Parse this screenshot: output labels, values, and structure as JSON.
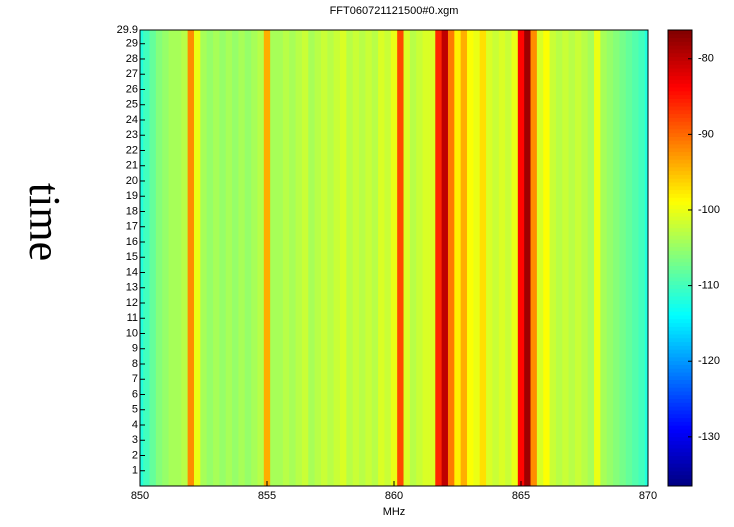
{
  "chart_data": {
    "type": "spectrogram",
    "title": "FFT060721121500#0.xgm",
    "x_label": "MHz",
    "y_label": "time",
    "colormap": "jet",
    "x": [
      850,
      850.25,
      850.5,
      850.75,
      851,
      851.25,
      851.5,
      851.75,
      852,
      852.25,
      852.5,
      852.75,
      853,
      853.25,
      853.5,
      853.75,
      854,
      854.25,
      854.5,
      854.75,
      855,
      855.25,
      855.5,
      855.75,
      856,
      856.25,
      856.5,
      856.75,
      857,
      857.25,
      857.5,
      857.75,
      858,
      858.25,
      858.5,
      858.75,
      859,
      859.25,
      859.5,
      859.75,
      860,
      860.25,
      860.5,
      860.75,
      861,
      861.25,
      861.5,
      861.75,
      862,
      862.25,
      862.5,
      862.75,
      863,
      863.25,
      863.5,
      863.75,
      864,
      864.25,
      864.5,
      864.75,
      865,
      865.25,
      865.5,
      865.75,
      866,
      866.25,
      866.5,
      866.75,
      867,
      867.25,
      867.5,
      867.75,
      868,
      868.25,
      868.5,
      868.75,
      869,
      869.25,
      869.5,
      869.75,
      870
    ],
    "values": [
      -112,
      -110,
      -108,
      -106,
      -105,
      -104,
      -104,
      -103,
      -92,
      -100,
      -104,
      -105,
      -104,
      -105,
      -104,
      -105,
      -104,
      -105,
      -104,
      -103,
      -94,
      -104,
      -104,
      -103,
      -104,
      -103,
      -102,
      -104,
      -103,
      -102,
      -103,
      -102,
      -101,
      -103,
      -102,
      -103,
      -102,
      -103,
      -101,
      -102,
      -100,
      -88,
      -101,
      -103,
      -102,
      -101,
      -101,
      -86,
      -80,
      -91,
      -98,
      -94,
      -99,
      -100,
      -97,
      -101,
      -102,
      -101,
      -102,
      -100,
      -84,
      -78,
      -92,
      -101,
      -99,
      -102,
      -103,
      -102,
      -103,
      -102,
      -103,
      -104,
      -100,
      -104,
      -105,
      -106,
      -107,
      -108,
      -109,
      -110,
      -112
    ],
    "xlim": [
      850,
      870
    ],
    "xticks": [
      850,
      855,
      860,
      865,
      870
    ],
    "ylim": [
      0,
      29.9
    ],
    "yticks": [
      1,
      2,
      3,
      4,
      5,
      6,
      7,
      8,
      9,
      10,
      11,
      12,
      13,
      14,
      15,
      16,
      17,
      18,
      19,
      20,
      21,
      22,
      23,
      24,
      25,
      26,
      27,
      28,
      29,
      29.9
    ],
    "clim": [
      -136.5,
      -76.2
    ],
    "cticks": [
      -80,
      -90,
      -100,
      -110,
      -120,
      -130
    ]
  }
}
